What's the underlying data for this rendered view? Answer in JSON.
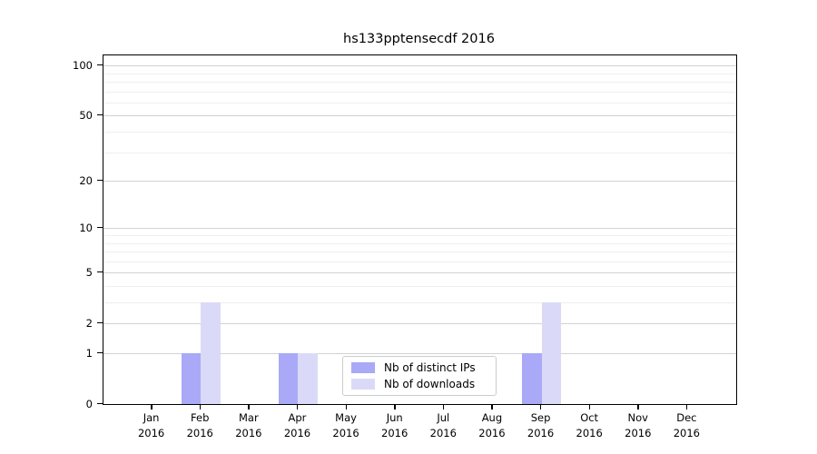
{
  "title": "hs133pptensecdf 2016",
  "colors": {
    "distinct_ips_bar": "#a9a9f7",
    "downloads_bar": "#dadaf8",
    "grid_major": "#d2d2d2",
    "grid_minor": "#efefef",
    "spine": "#000000",
    "text": "#000000",
    "legend_border": "#cccccc",
    "background": "#ffffff"
  },
  "legend": {
    "items": [
      {
        "label": "Nb of distinct IPs",
        "color_key": "distinct_ips_bar"
      },
      {
        "label": "Nb of downloads",
        "color_key": "downloads_bar"
      }
    ]
  },
  "chart_data": {
    "type": "bar",
    "title": "hs133pptensecdf 2016",
    "categories": [
      "Jan 2016",
      "Feb 2016",
      "Mar 2016",
      "Apr 2016",
      "May 2016",
      "Jun 2016",
      "Jul 2016",
      "Aug 2016",
      "Sep 2016",
      "Oct 2016",
      "Nov 2016",
      "Dec 2016"
    ],
    "x_tick_months": [
      "Jan",
      "Feb",
      "Mar",
      "Apr",
      "May",
      "Jun",
      "Jul",
      "Aug",
      "Sep",
      "Oct",
      "Nov",
      "Dec"
    ],
    "x_tick_year": "2016",
    "series": [
      {
        "name": "Nb of distinct IPs",
        "color": "#a9a9f7",
        "values": [
          0,
          1,
          0,
          1,
          0,
          0,
          0,
          0,
          1,
          0,
          0,
          0
        ]
      },
      {
        "name": "Nb of downloads",
        "color": "#dadaf8",
        "values": [
          0,
          3,
          0,
          1,
          0,
          0,
          0,
          0,
          3,
          0,
          0,
          0
        ]
      }
    ],
    "xlabel": "",
    "ylabel": "",
    "yscale": "log10(1+x)",
    "ylim": [
      0,
      115
    ],
    "y_major_ticks": [
      0,
      1,
      2,
      5,
      10,
      20,
      50,
      100
    ],
    "y_minor_gridlines": [
      3,
      4,
      6,
      7,
      8,
      9,
      30,
      40,
      60,
      70,
      80,
      90
    ],
    "grid": "on",
    "legend_position": "lower center"
  }
}
